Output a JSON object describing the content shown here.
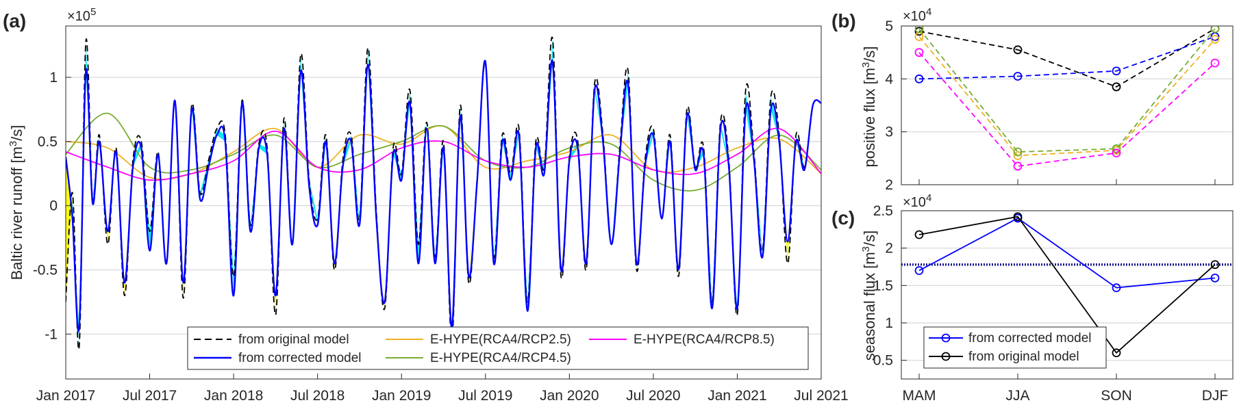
{
  "chart_data": [
    {
      "panel": "(a)",
      "type": "line",
      "ylabel": "Baltic river runoff [m³/s]",
      "y_exponent_label": "×10⁵",
      "ylim": [
        -1.35,
        1.4
      ],
      "xlim": [
        2017.0,
        2021.5
      ],
      "x_ticks": [
        "Jan 2017",
        "Jul 2017",
        "Jan 2018",
        "Jul 2018",
        "Jan 2019",
        "Jul 2019",
        "Jan 2020",
        "Jul 2020",
        "Jan 2021",
        "Jul 2021"
      ],
      "y_ticks": [
        "-1",
        "-0.5",
        "0",
        "0.5",
        "1"
      ],
      "y_tick_values": [
        -1,
        -0.5,
        0,
        0.5,
        1
      ],
      "grid": "horizontal",
      "fill_colors": {
        "above": "#00e5ee",
        "below": "#ffff00"
      },
      "series": [
        {
          "name": "from original model",
          "color": "#000000",
          "style": "dashed",
          "x": [
            2017.0,
            2017.04,
            2017.08,
            2017.12,
            2017.16,
            2017.2,
            2017.25,
            2017.3,
            2017.35,
            2017.4,
            2017.45,
            2017.5,
            2017.55,
            2017.6,
            2017.65,
            2017.7,
            2017.75,
            2017.8,
            2017.85,
            2017.9,
            2017.95,
            2018.0,
            2018.05,
            2018.1,
            2018.15,
            2018.2,
            2018.25,
            2018.3,
            2018.35,
            2018.4,
            2018.45,
            2018.5,
            2018.55,
            2018.6,
            2018.65,
            2018.7,
            2018.75,
            2018.8,
            2018.85,
            2018.9,
            2018.95,
            2019.0,
            2019.05,
            2019.1,
            2019.15,
            2019.2,
            2019.25,
            2019.3,
            2019.35,
            2019.4,
            2019.45,
            2019.5,
            2019.55,
            2019.6,
            2019.65,
            2019.7,
            2019.75,
            2019.8,
            2019.85,
            2019.9,
            2019.95,
            2020.0,
            2020.05,
            2020.1,
            2020.15,
            2020.2,
            2020.25,
            2020.3,
            2020.35,
            2020.4,
            2020.45,
            2020.5,
            2020.55,
            2020.6,
            2020.65,
            2020.7,
            2020.75,
            2020.8,
            2020.85,
            2020.9,
            2020.95,
            2021.0,
            2021.05,
            2021.1,
            2021.15,
            2021.2,
            2021.25,
            2021.3,
            2021.35,
            2021.4,
            2021.45,
            2021.5
          ],
          "values": [
            -0.75,
            0.1,
            -1.1,
            1.28,
            0.05,
            0.55,
            -0.3,
            0.45,
            -0.7,
            0.35,
            0.5,
            -0.2,
            0.42,
            -0.45,
            0.82,
            -0.72,
            0.78,
            0.1,
            0.35,
            0.6,
            0.55,
            -0.55,
            0.82,
            -0.15,
            0.48,
            0.45,
            -0.85,
            0.68,
            -0.3,
            1.18,
            0.2,
            -0.1,
            0.55,
            -0.5,
            0.35,
            0.55,
            -0.1,
            1.23,
            -0.05,
            -0.8,
            0.45,
            0.25,
            0.9,
            -0.3,
            0.65,
            -0.4,
            0.5,
            -1.05,
            0.78,
            -0.6,
            0.2,
            1.1,
            -0.4,
            0.55,
            0.25,
            0.6,
            -0.75,
            0.5,
            0.3,
            1.3,
            -0.55,
            0.38,
            0.5,
            -0.5,
            0.95,
            0.55,
            -0.3,
            0.45,
            1.05,
            -0.5,
            0.35,
            0.6,
            -0.1,
            0.55,
            -0.55,
            0.75,
            0.3,
            0.45,
            -0.75,
            0.65,
            0.35,
            -0.85,
            0.9,
            0.4,
            -0.35,
            0.85,
            0.55,
            -0.45,
            0.55,
            0.3,
            0.78,
            0.8
          ]
        },
        {
          "name": "from corrected model",
          "color": "#0000ff",
          "style": "solid",
          "x": [
            2017.0,
            2017.04,
            2017.08,
            2017.12,
            2017.16,
            2017.2,
            2017.25,
            2017.3,
            2017.35,
            2017.4,
            2017.45,
            2017.5,
            2017.55,
            2017.6,
            2017.65,
            2017.7,
            2017.75,
            2017.8,
            2017.85,
            2017.9,
            2017.95,
            2018.0,
            2018.05,
            2018.1,
            2018.15,
            2018.2,
            2018.25,
            2018.3,
            2018.35,
            2018.4,
            2018.45,
            2018.5,
            2018.55,
            2018.6,
            2018.65,
            2018.7,
            2018.75,
            2018.8,
            2018.85,
            2018.9,
            2018.95,
            2019.0,
            2019.05,
            2019.1,
            2019.15,
            2019.2,
            2019.25,
            2019.3,
            2019.35,
            2019.4,
            2019.45,
            2019.5,
            2019.55,
            2019.6,
            2019.65,
            2019.7,
            2019.75,
            2019.8,
            2019.85,
            2019.9,
            2019.95,
            2020.0,
            2020.05,
            2020.1,
            2020.15,
            2020.2,
            2020.25,
            2020.3,
            2020.35,
            2020.4,
            2020.45,
            2020.5,
            2020.55,
            2020.6,
            2020.65,
            2020.7,
            2020.75,
            2020.8,
            2020.85,
            2020.9,
            2020.95,
            2021.0,
            2021.05,
            2021.1,
            2021.15,
            2021.2,
            2021.25,
            2021.3,
            2021.35,
            2021.4,
            2021.45,
            2021.5
          ],
          "values": [
            0.38,
            -0.1,
            -0.95,
            1.05,
            0.02,
            0.5,
            -0.2,
            0.42,
            -0.6,
            0.3,
            0.45,
            -0.35,
            0.4,
            -0.45,
            0.82,
            -0.6,
            0.75,
            0.05,
            0.3,
            0.55,
            0.5,
            -0.7,
            0.8,
            -0.2,
            0.45,
            0.4,
            -0.7,
            0.6,
            -0.3,
            1.05,
            0.15,
            -0.15,
            0.5,
            -0.45,
            0.3,
            0.5,
            -0.15,
            1.1,
            -0.1,
            -0.75,
            0.4,
            0.2,
            0.8,
            -0.45,
            0.6,
            -0.45,
            0.45,
            -0.95,
            0.7,
            -0.55,
            0.18,
            1.12,
            -0.45,
            0.5,
            0.2,
            0.55,
            -0.82,
            0.45,
            0.25,
            1.12,
            -0.5,
            0.35,
            0.45,
            -0.45,
            0.9,
            0.5,
            -0.3,
            0.4,
            0.95,
            -0.45,
            0.3,
            0.55,
            -0.1,
            0.5,
            -0.5,
            0.7,
            0.28,
            0.4,
            -0.8,
            0.6,
            0.3,
            -0.8,
            0.75,
            0.35,
            -0.4,
            0.75,
            0.5,
            -0.28,
            0.5,
            0.28,
            0.78,
            0.8
          ]
        },
        {
          "name": "E-HYPE(RCA4/RCP2.5)",
          "color": "#edb120",
          "style": "solid",
          "x": [
            2017.0,
            2017.25,
            2017.5,
            2017.75,
            2018.0,
            2018.25,
            2018.5,
            2018.75,
            2019.0,
            2019.25,
            2019.5,
            2019.75,
            2020.0,
            2020.25,
            2020.5,
            2020.75,
            2021.0,
            2021.25,
            2021.5
          ],
          "values": [
            0.5,
            0.45,
            0.22,
            0.25,
            0.42,
            0.6,
            0.3,
            0.55,
            0.48,
            0.62,
            0.3,
            0.35,
            0.42,
            0.55,
            0.28,
            0.3,
            0.45,
            0.52,
            0.25
          ]
        },
        {
          "name": "E-HYPE(RCA4/RCP4.5)",
          "color": "#77ac30",
          "style": "solid",
          "x": [
            2017.0,
            2017.25,
            2017.5,
            2017.75,
            2018.0,
            2018.25,
            2018.5,
            2018.75,
            2019.0,
            2019.25,
            2019.5,
            2019.75,
            2020.0,
            2020.25,
            2020.5,
            2020.75,
            2021.0,
            2021.25,
            2021.5
          ],
          "values": [
            0.4,
            0.72,
            0.3,
            0.28,
            0.4,
            0.55,
            0.3,
            0.4,
            0.5,
            0.62,
            0.35,
            0.3,
            0.45,
            0.48,
            0.2,
            0.12,
            0.3,
            0.55,
            0.28
          ]
        },
        {
          "name": "E-HYPE(RCA4/RCP8.5)",
          "color": "#ff00ff",
          "style": "solid",
          "x": [
            2017.0,
            2017.25,
            2017.5,
            2017.75,
            2018.0,
            2018.25,
            2018.5,
            2018.75,
            2019.0,
            2019.25,
            2019.5,
            2019.75,
            2020.0,
            2020.25,
            2020.5,
            2020.75,
            2021.0,
            2021.25,
            2021.5
          ],
          "values": [
            0.42,
            0.3,
            0.2,
            0.25,
            0.35,
            0.58,
            0.3,
            0.28,
            0.45,
            0.5,
            0.35,
            0.3,
            0.38,
            0.4,
            0.28,
            0.25,
            0.4,
            0.6,
            0.25
          ]
        }
      ]
    },
    {
      "panel": "(b)",
      "type": "line",
      "ylabel": "positive flux  [m³/s]",
      "y_exponent_label": "×10⁴",
      "categories": [
        "MAM",
        "JJA",
        "SON",
        "DJF"
      ],
      "ylim": [
        2,
        5
      ],
      "y_ticks": [
        "2",
        "3",
        "4",
        "5"
      ],
      "y_tick_values": [
        2,
        3,
        4,
        5
      ],
      "grid": "horizontal",
      "series": [
        {
          "color": "#000000",
          "values": [
            4.9,
            4.55,
            3.85,
            4.95
          ]
        },
        {
          "color": "#0000ff",
          "values": [
            4.0,
            4.05,
            4.15,
            4.8
          ]
        },
        {
          "color": "#edb120",
          "values": [
            4.8,
            2.55,
            2.65,
            4.75
          ]
        },
        {
          "color": "#77ac30",
          "values": [
            4.95,
            2.62,
            2.68,
            4.95
          ]
        },
        {
          "color": "#ff00ff",
          "values": [
            4.5,
            2.35,
            2.6,
            4.3
          ]
        }
      ]
    },
    {
      "panel": "(c)",
      "type": "line",
      "ylabel": "seasonal flux  [m³/s]",
      "y_exponent_label": "×10⁴",
      "categories": [
        "MAM",
        "JJA",
        "SON",
        "DJF"
      ],
      "ylim": [
        0.25,
        2.5
      ],
      "y_ticks": [
        "0.5",
        "1",
        "1.5",
        "2",
        "2.5"
      ],
      "y_tick_values": [
        0.5,
        1,
        1.5,
        2,
        2.5
      ],
      "grid": "horizontal",
      "reference_line": 1.78,
      "series": [
        {
          "name": "from corrected model",
          "color": "#0000ff",
          "values": [
            1.7,
            2.4,
            1.47,
            1.6
          ]
        },
        {
          "name": "from original model",
          "color": "#000000",
          "values": [
            2.18,
            2.42,
            0.6,
            1.78
          ]
        }
      ]
    }
  ]
}
